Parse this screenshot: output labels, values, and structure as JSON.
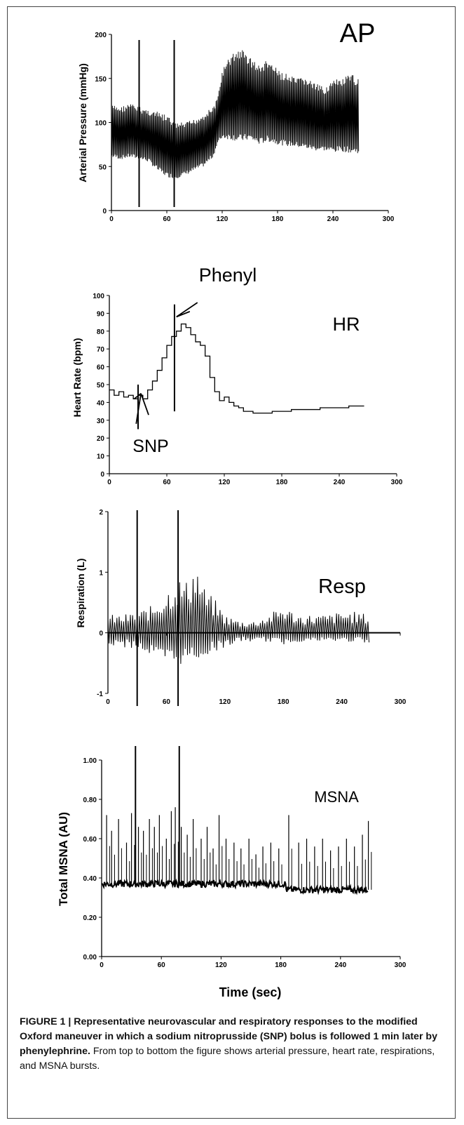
{
  "chart_data": [
    {
      "type": "line",
      "panel_label": "AP",
      "ylabel": "Arterial Pressure (mmHg)",
      "ylim": [
        0,
        200
      ],
      "yticks": [
        0,
        50,
        100,
        150,
        200
      ],
      "xlim": [
        0,
        300
      ],
      "xticks": [
        0,
        60,
        120,
        180,
        240,
        300
      ],
      "series": [
        {
          "envelope": {
            "x": [
              0,
              10,
              20,
              30,
              40,
              50,
              60,
              70,
              80,
              90,
              100,
              110,
              115,
              120,
              130,
              140,
              150,
              160,
              170,
              180,
              190,
              200,
              210,
              220,
              230,
              240,
              250,
              260,
              268
            ],
            "upper": [
              120,
              118,
              122,
              118,
              115,
              112,
              108,
              100,
              100,
              104,
              110,
              118,
              128,
              160,
              178,
              185,
              175,
              165,
              172,
              160,
              155,
              150,
              152,
              145,
              140,
              148,
              150,
              155,
              150
            ],
            "lower": [
              60,
              58,
              60,
              58,
              55,
              45,
              38,
              36,
              40,
              45,
              50,
              60,
              75,
              82,
              80,
              78,
              80,
              75,
              78,
              75,
              73,
              72,
              70,
              68,
              68,
              66,
              67,
              65,
              65
            ]
          }
        }
      ],
      "event_lines_x": [
        30,
        68
      ]
    },
    {
      "type": "line",
      "panel_label": "HR",
      "ylabel": "Heart Rate (bpm)",
      "ylim": [
        0,
        100
      ],
      "yticks": [
        0,
        10,
        20,
        30,
        40,
        50,
        60,
        70,
        80,
        90,
        100
      ],
      "xlim": [
        0,
        300
      ],
      "xticks": [
        0,
        60,
        120,
        180,
        240,
        300
      ],
      "series": [
        {
          "x": [
            0,
            5,
            10,
            15,
            20,
            25,
            30,
            35,
            40,
            45,
            50,
            55,
            60,
            65,
            70,
            75,
            80,
            85,
            90,
            95,
            100,
            105,
            110,
            115,
            120,
            125,
            130,
            135,
            140,
            145,
            150,
            160,
            170,
            180,
            190,
            200,
            210,
            220,
            230,
            240,
            250,
            260,
            266
          ],
          "values": [
            47,
            44,
            46,
            43,
            44,
            42,
            44,
            42,
            47,
            52,
            58,
            65,
            72,
            77,
            80,
            84,
            82,
            78,
            74,
            72,
            66,
            54,
            46,
            41,
            43,
            40,
            38,
            37,
            35,
            35,
            34,
            34,
            35,
            35,
            36,
            36,
            36,
            37,
            37,
            37,
            38,
            38,
            38
          ]
        }
      ],
      "event_lines_x": [
        30,
        68
      ],
      "annotations": [
        {
          "text": "Phenyl",
          "x": 80,
          "y": 90
        },
        {
          "text": "SNP",
          "x": 33,
          "y": 45
        }
      ]
    },
    {
      "type": "line",
      "panel_label": "Resp",
      "ylabel": "Respiration (L)",
      "ylim": [
        -1,
        2
      ],
      "yticks": [
        -1,
        0,
        1,
        2
      ],
      "xlim": [
        0,
        300
      ],
      "xticks": [
        0,
        60,
        120,
        180,
        240,
        300
      ],
      "series": [
        {
          "envelope": {
            "x": [
              0,
              15,
              30,
              45,
              60,
              70,
              80,
              90,
              100,
              110,
              120,
              135,
              150,
              165,
              180,
              195,
              210,
              225,
              240,
              255,
              268
            ],
            "upper": [
              0.3,
              0.3,
              0.35,
              0.45,
              0.7,
              0.95,
              0.85,
              1.2,
              0.7,
              0.55,
              0.3,
              0.2,
              0.2,
              0.3,
              0.45,
              0.3,
              0.3,
              0.3,
              0.35,
              0.35,
              0.3
            ],
            "lower": [
              -0.2,
              -0.25,
              -0.25,
              -0.4,
              -0.55,
              -0.55,
              -0.5,
              -0.45,
              -0.4,
              -0.3,
              -0.25,
              -0.15,
              -0.15,
              -0.15,
              -0.2,
              -0.15,
              -0.15,
              -0.15,
              -0.15,
              -0.15,
              -0.2
            ]
          }
        }
      ],
      "event_lines_x": [
        30,
        72
      ]
    },
    {
      "type": "line",
      "panel_label": "MSNA",
      "ylabel": "Total MSNA (AU)",
      "xlabel": "Time (sec)",
      "ylim": [
        0,
        1.0
      ],
      "yticks": [
        "0.00",
        "0.20",
        "0.40",
        "0.60",
        "0.80",
        "1.00"
      ],
      "xlim": [
        0,
        300
      ],
      "xticks": [
        0,
        60,
        120,
        180,
        240,
        300
      ],
      "series": [
        {
          "baseline": 0.37,
          "baseline_end": 0.34,
          "spikes": {
            "x": [
              5,
              10,
              17,
              25,
              30,
              37,
              42,
              48,
              53,
              58,
              65,
              70,
              74,
              80,
              86,
              92,
              100,
              106,
              112,
              118,
              125,
              133,
              140,
              148,
              155,
              162,
              170,
              178,
              188,
              198,
              206,
              214,
              222,
              230,
              238,
              246,
              254,
              262,
              268
            ],
            "values": [
              0.72,
              0.64,
              0.7,
              0.58,
              0.73,
              0.66,
              0.64,
              0.7,
              0.66,
              0.72,
              0.6,
              0.74,
              0.76,
              0.66,
              0.62,
              0.7,
              0.6,
              0.66,
              0.55,
              0.72,
              0.6,
              0.58,
              0.55,
              0.6,
              0.52,
              0.56,
              0.58,
              0.55,
              0.72,
              0.58,
              0.6,
              0.56,
              0.6,
              0.54,
              0.56,
              0.6,
              0.56,
              0.62,
              0.69
            ]
          }
        }
      ],
      "event_lines_x": [
        34,
        78
      ]
    }
  ],
  "caption": {
    "bold": "FIGURE 1 | Representative neurovascular and respiratory responses to the modified Oxford maneuver in which a sodium nitroprusside (SNP) bolus is followed 1 min later by phenylephrine.",
    "normal": " From top to bottom the figure shows arterial pressure, heart rate, respirations, and MSNA bursts."
  }
}
